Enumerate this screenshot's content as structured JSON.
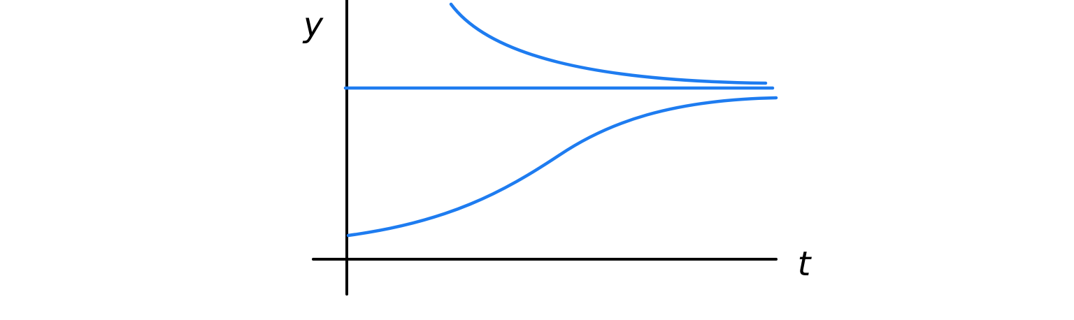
{
  "axes": {
    "y_label": "y",
    "x_label": "t"
  }
}
